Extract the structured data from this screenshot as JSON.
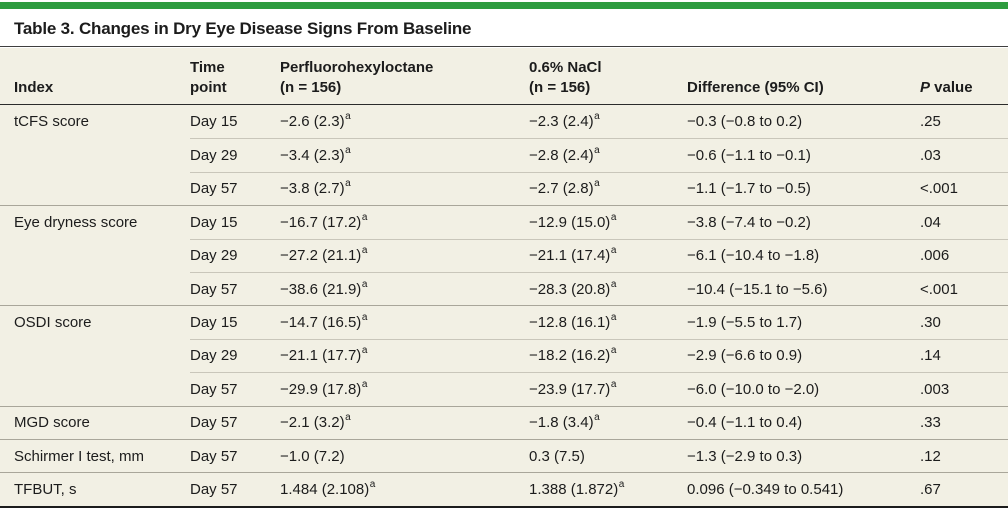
{
  "title": "Table 3. Changes in Dry Eye Disease Signs From Baseline",
  "colors": {
    "green": "#2e9c3f",
    "cream": "#f2f0e4",
    "ink": "#1c1c1c",
    "rule": "#3f3f3f",
    "dark-rule": "#2b2b2b",
    "sep-light": "#c9c6ba",
    "sep-group": "#a9a69a"
  },
  "header": {
    "index": "Index",
    "time": {
      "line1": "Time",
      "line2": "point"
    },
    "pfho": {
      "line1": "Perfluorohexyloctane",
      "line2": "(n = 156)"
    },
    "nacl": {
      "line1": "0.6% NaCl",
      "line2": "(n = 156)"
    },
    "difference": "Difference (95% CI)",
    "p_italic": "P",
    "p_rest": " value"
  },
  "rows": [
    {
      "index": "tCFS score",
      "time": "Day 15",
      "pfho": "−2.6 (2.3)",
      "pfho_sup": "a",
      "nacl": "−2.3 (2.4)",
      "nacl_sup": "a",
      "diff": "−0.3 (−0.8 to 0.2)",
      "p": ".25"
    },
    {
      "index": "",
      "time": "Day 29",
      "pfho": "−3.4 (2.3)",
      "pfho_sup": "a",
      "nacl": "−2.8 (2.4)",
      "nacl_sup": "a",
      "diff": "−0.6 (−1.1 to −0.1)",
      "p": ".03"
    },
    {
      "index": "",
      "time": "Day 57",
      "pfho": "−3.8 (2.7)",
      "pfho_sup": "a",
      "nacl": "−2.7 (2.8)",
      "nacl_sup": "a",
      "diff": "−1.1 (−1.7 to −0.5)",
      "p": "<.001"
    },
    {
      "index": "Eye dryness score",
      "time": "Day 15",
      "pfho": "−16.7 (17.2)",
      "pfho_sup": "a",
      "nacl": "−12.9 (15.0)",
      "nacl_sup": "a",
      "diff": "−3.8 (−7.4 to −0.2)",
      "p": ".04"
    },
    {
      "index": "",
      "time": "Day 29",
      "pfho": "−27.2 (21.1)",
      "pfho_sup": "a",
      "nacl": "−21.1 (17.4)",
      "nacl_sup": "a",
      "diff": "−6.1 (−10.4 to −1.8)",
      "p": ".006"
    },
    {
      "index": "",
      "time": "Day 57",
      "pfho": "−38.6 (21.9)",
      "pfho_sup": "a",
      "nacl": "−28.3 (20.8)",
      "nacl_sup": "a",
      "diff": "−10.4 (−15.1 to −5.6)",
      "p": "<.001"
    },
    {
      "index": "OSDI score",
      "time": "Day 15",
      "pfho": "−14.7 (16.5)",
      "pfho_sup": "a",
      "nacl": "−12.8 (16.1)",
      "nacl_sup": "a",
      "diff": "−1.9 (−5.5 to 1.7)",
      "p": ".30"
    },
    {
      "index": "",
      "time": "Day 29",
      "pfho": "−21.1 (17.7)",
      "pfho_sup": "a",
      "nacl": "−18.2 (16.2)",
      "nacl_sup": "a",
      "diff": "−2.9 (−6.6 to 0.9)",
      "p": ".14"
    },
    {
      "index": "",
      "time": "Day 57",
      "pfho": "−29.9 (17.8)",
      "pfho_sup": "a",
      "nacl": "−23.9 (17.7)",
      "nacl_sup": "a",
      "diff": "−6.0 (−10.0 to −2.0)",
      "p": ".003"
    },
    {
      "index": "MGD score",
      "time": "Day 57",
      "pfho": "−2.1 (3.2)",
      "pfho_sup": "a",
      "nacl": "−1.8 (3.4)",
      "nacl_sup": "a",
      "diff": "−0.4 (−1.1 to 0.4)",
      "p": ".33"
    },
    {
      "index": "Schirmer I test, mm",
      "time": "Day 57",
      "pfho": "−1.0 (7.2)",
      "pfho_sup": "",
      "nacl": "0.3 (7.5)",
      "nacl_sup": "",
      "diff": "−1.3 (−2.9 to 0.3)",
      "p": ".12"
    },
    {
      "index": "TFBUT, s",
      "time": "Day 57",
      "pfho": "1.484 (2.108)",
      "pfho_sup": "a",
      "nacl": "1.388 (1.872)",
      "nacl_sup": "a",
      "diff": "0.096 (−0.349 to 0.541)",
      "p": ".67"
    }
  ]
}
